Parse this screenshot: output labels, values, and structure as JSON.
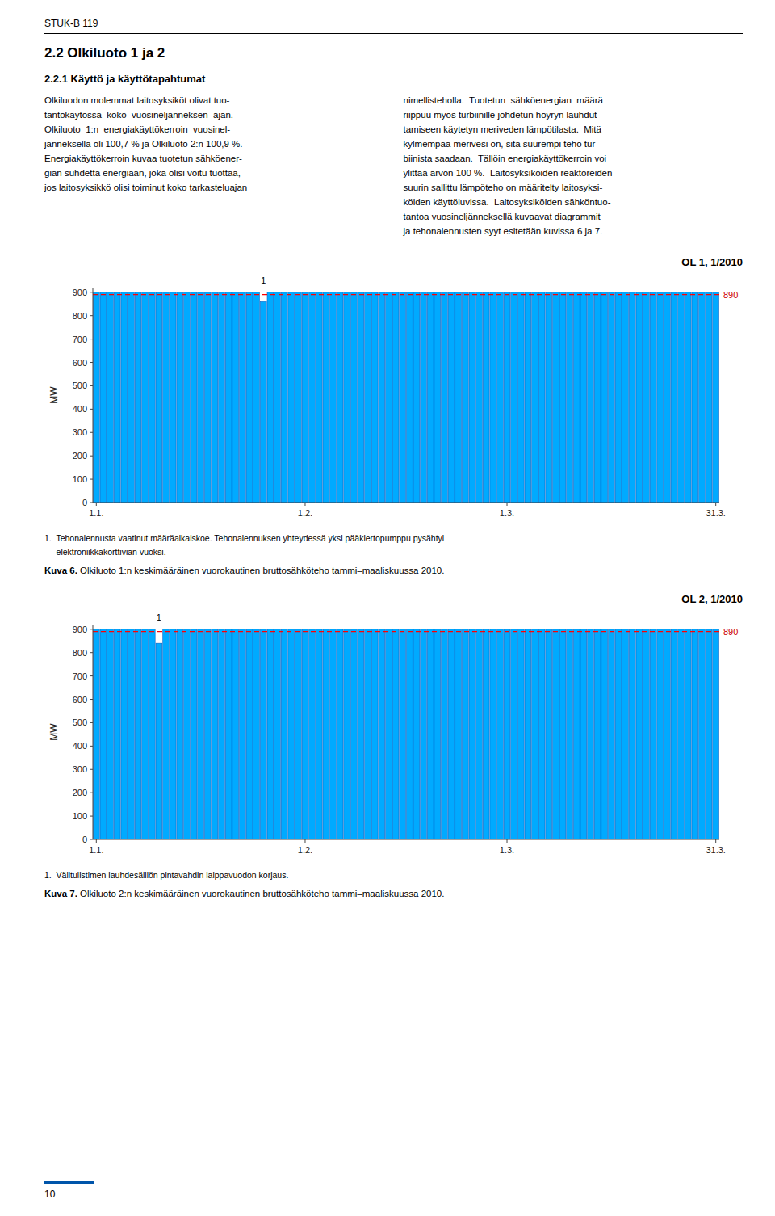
{
  "chart_data": [
    {
      "type": "bar",
      "title": "OL 1, 1/2010",
      "y_label": "MW",
      "categories": [
        "1.1.",
        null,
        null,
        null,
        null,
        null,
        null,
        null,
        null,
        null,
        null,
        null,
        null,
        null,
        null,
        null,
        null,
        null,
        null,
        null,
        null,
        null,
        null,
        null,
        null,
        null,
        null,
        null,
        null,
        null,
        "1.2.",
        null,
        null,
        null,
        null,
        null,
        null,
        null,
        null,
        null,
        null,
        null,
        null,
        null,
        null,
        null,
        null,
        null,
        null,
        null,
        null,
        null,
        null,
        null,
        null,
        null,
        null,
        null,
        null,
        "1.3.",
        null,
        null,
        null,
        null,
        null,
        null,
        null,
        null,
        null,
        null,
        null,
        null,
        null,
        null,
        null,
        null,
        null,
        null,
        null,
        null,
        null,
        null,
        null,
        null,
        null,
        null,
        null,
        null,
        null,
        "31.3."
      ],
      "values": [
        900,
        900,
        900,
        900,
        900,
        900,
        900,
        900,
        900,
        900,
        900,
        900,
        900,
        900,
        900,
        900,
        900,
        900,
        900,
        900,
        900,
        900,
        900,
        900,
        860,
        900,
        900,
        900,
        900,
        900,
        900,
        900,
        900,
        900,
        900,
        900,
        900,
        900,
        900,
        900,
        900,
        900,
        900,
        900,
        900,
        900,
        900,
        900,
        900,
        900,
        900,
        900,
        900,
        900,
        900,
        900,
        900,
        900,
        900,
        900,
        900,
        900,
        900,
        900,
        900,
        900,
        900,
        900,
        900,
        900,
        900,
        900,
        900,
        900,
        900,
        900,
        900,
        900,
        900,
        900,
        900,
        900,
        900,
        900,
        900,
        900,
        900,
        900,
        900,
        900
      ],
      "color": "#00AAFF",
      "edge_color": "#0055BB",
      "ylim": [
        0,
        920
      ],
      "yticks": [
        0,
        100,
        200,
        300,
        400,
        500,
        600,
        700,
        800,
        900
      ],
      "grid": false,
      "reference_line": {
        "value": 890,
        "color": "#FF0000",
        "label": "890",
        "label_color": "#CC0000"
      },
      "annotations": [
        {
          "text": "1",
          "index": 24
        }
      ],
      "notes": [
        "1.  Tehonalennusta vaatinut määräaikaiskoe. Tehonalennuksen yhteydessä yksi pääkiertopumppu pysähtyi",
        "     elektroniikkakorttivian vuoksi."
      ],
      "figure_label": "Kuva 6.",
      "figure_caption": " Olkiluoto 1:n keskimääräinen vuorokautinen bruttosähköteho tammi–maaliskuussa 2010."
    },
    {
      "type": "bar",
      "title": "OL 2, 1/2010",
      "y_label": "MW",
      "categories": [
        "1.1.",
        null,
        null,
        null,
        null,
        null,
        null,
        null,
        null,
        null,
        null,
        null,
        null,
        null,
        null,
        null,
        null,
        null,
        null,
        null,
        null,
        null,
        null,
        null,
        null,
        null,
        null,
        null,
        null,
        null,
        "1.2.",
        null,
        null,
        null,
        null,
        null,
        null,
        null,
        null,
        null,
        null,
        null,
        null,
        null,
        null,
        null,
        null,
        null,
        null,
        null,
        null,
        null,
        null,
        null,
        null,
        null,
        null,
        null,
        null,
        "1.3.",
        null,
        null,
        null,
        null,
        null,
        null,
        null,
        null,
        null,
        null,
        null,
        null,
        null,
        null,
        null,
        null,
        null,
        null,
        null,
        null,
        null,
        null,
        null,
        null,
        null,
        null,
        null,
        null,
        null,
        "31.3."
      ],
      "values": [
        900,
        900,
        900,
        900,
        900,
        900,
        900,
        900,
        900,
        840,
        900,
        900,
        900,
        900,
        900,
        900,
        900,
        900,
        900,
        900,
        900,
        900,
        900,
        900,
        900,
        900,
        900,
        900,
        900,
        900,
        900,
        900,
        900,
        900,
        900,
        900,
        900,
        900,
        900,
        900,
        900,
        900,
        900,
        900,
        900,
        900,
        900,
        900,
        900,
        900,
        900,
        900,
        900,
        900,
        900,
        900,
        900,
        900,
        900,
        900,
        900,
        900,
        900,
        900,
        900,
        900,
        900,
        900,
        900,
        900,
        900,
        900,
        900,
        900,
        900,
        900,
        900,
        900,
        900,
        900,
        900,
        900,
        900,
        900,
        900,
        900,
        900,
        900,
        900,
        900
      ],
      "color": "#00AAFF",
      "edge_color": "#0055BB",
      "ylim": [
        0,
        920
      ],
      "yticks": [
        0,
        100,
        200,
        300,
        400,
        500,
        600,
        700,
        800,
        900
      ],
      "grid": false,
      "reference_line": {
        "value": 890,
        "color": "#FF0000",
        "label": "890",
        "label_color": "#CC0000"
      },
      "annotations": [
        {
          "text": "1",
          "index": 9
        }
      ],
      "notes": [
        "1.  Välitulistimen lauhdesäiliön pintavahdin laippavuodon korjaus."
      ],
      "figure_label": "Kuva 7.",
      "figure_caption": " Olkiluoto 2:n keskimääräinen vuorokautinen bruttosähköteho tammi–maaliskuussa 2010."
    }
  ],
  "page": {
    "header": "STUK-B 119",
    "section_title": "2.2  Olkiluoto 1 ja 2",
    "subsection_title": "2.2.1 Käyttö ja käyttötapahtumat",
    "para1": "Olkiluodon molemmat laitosyksiköt olivat tuo-\ntantokäytössä  koko  vuosineljänneksen  ajan.\nOlkiluoto  1:n  energiakäyttökerroin  vuosinel-\njänneksellä oli 100,7 % ja Olkiluoto 2:n 100,9 %.\nEnergiakäyttökerroin kuvaa tuotetun sähköener-\ngian suhdetta energiaan, joka olisi voitu tuottaa,\njos laitosyksikkö olisi toiminut koko tarkasteluajan",
    "para2": "nimellisteholla.  Tuotetun  sähköenergian  määrä\nriippuu myös turbiinille johdetun höyryn lauhdut-\ntamiseen käytetyn meriveden lämpötilasta.  Mitä\nkylmempää merivesi on, sitä suurempi teho tur-\nbiinista saadaan.  Tällöin energiakäyttökerroin voi\nylittää arvon 100 %.  Laitosyksiköiden reaktoreiden\nsuurin sallittu lämpöteho on määritelty laitosyksi-\nköiden käyttöluvissa.  Laitosyksiköiden sähköntuo-\ntantoa vuosineljänneksellä kuvaavat diagrammit\nja tehonalennusten syyt esitetään kuvissa 6 ja 7.",
    "page_number": "10",
    "page_number_rule_color": "#0055AA",
    "background_color": "#FFFFFF"
  }
}
